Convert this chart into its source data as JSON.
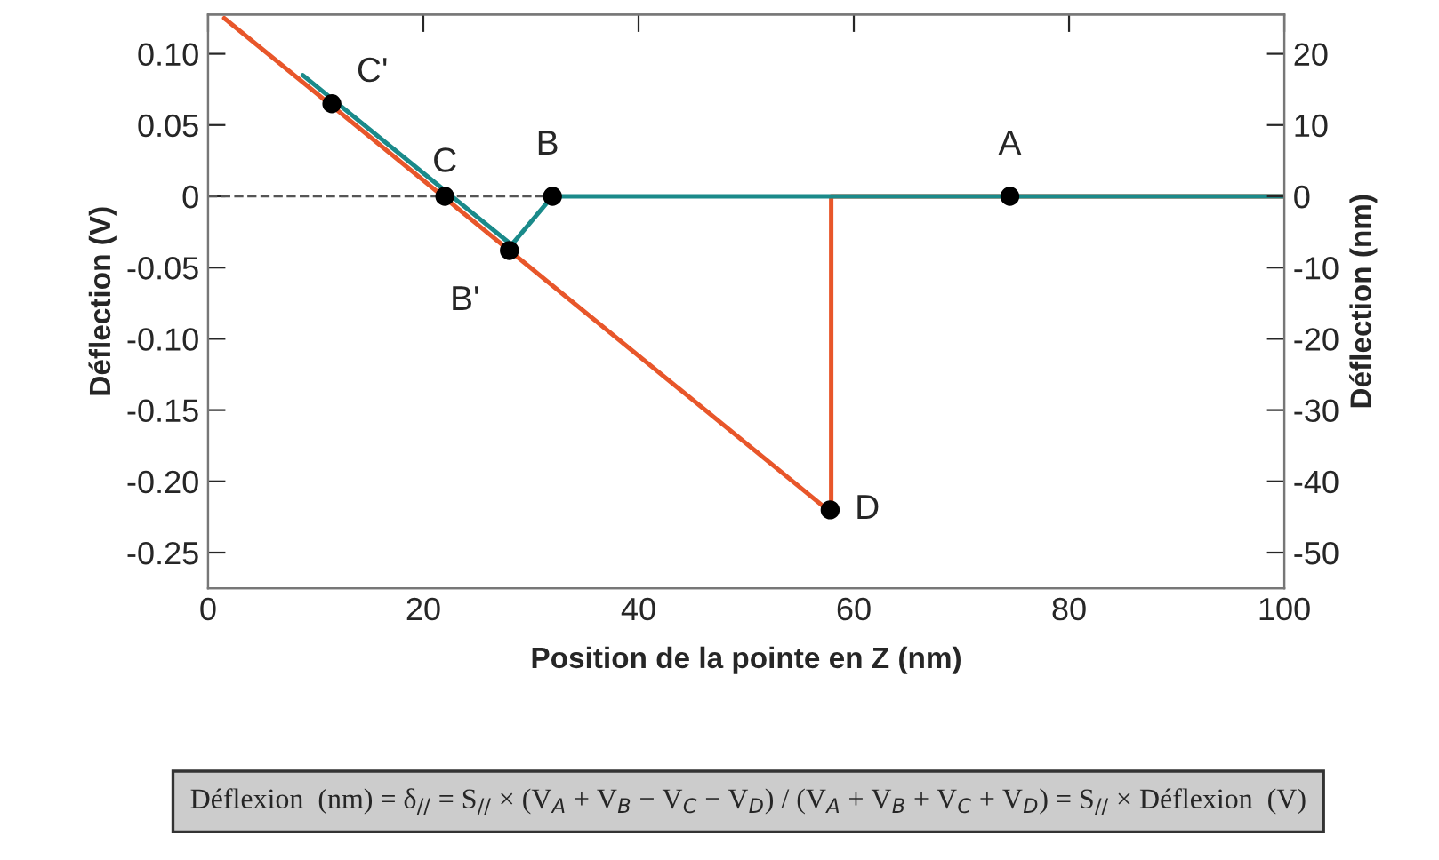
{
  "chart_data": {
    "type": "line",
    "xlabel": "Position de la pointe en Z (nm)",
    "ylabel": "Déflection (V)",
    "y2label": "Déflection (nm)",
    "xlim": [
      0,
      100
    ],
    "xticks": [
      0,
      20,
      40,
      60,
      80,
      100
    ],
    "ylim": [
      -0.275,
      0.1275
    ],
    "yticks": [
      {
        "value": 0.1,
        "label": "0.10"
      },
      0.05,
      0,
      -0.05,
      {
        "value": -0.1,
        "label": "-0.10"
      },
      -0.15,
      {
        "value": -0.2,
        "label": "-0.20"
      },
      -0.25
    ],
    "y2lim": [
      -55,
      25.5
    ],
    "y2ticks": [
      20,
      10,
      0,
      -10,
      -20,
      -30,
      -40,
      -50
    ],
    "grid": false,
    "legend": false,
    "series": [
      {
        "color": "#e8562a",
        "x": [
          100,
          57.9,
          57.9,
          1.5
        ],
        "values": [
          0,
          0,
          -0.222,
          0.125
        ]
      },
      {
        "color": "#1a8a8a",
        "x": [
          100,
          32,
          28.2,
          8.8
        ],
        "values": [
          0,
          0,
          -0.034,
          0.085
        ]
      },
      {
        "type": "scatter",
        "color": "#000000",
        "marker": "circle",
        "x": [
          74.5,
          32,
          28,
          22,
          11.5,
          57.8
        ],
        "values": [
          0,
          0,
          -0.038,
          0,
          0.065,
          -0.22
        ]
      }
    ],
    "ref_lines": [
      {
        "axis": "y",
        "value": 0,
        "color": "#555555",
        "line_style": "dashed"
      }
    ],
    "annotations": [
      {
        "text": "A",
        "x": 74.5,
        "y": 0
      },
      {
        "text": "B",
        "x": 32,
        "y": 0
      },
      {
        "text": "B'",
        "x": 28,
        "y": -0.038
      },
      {
        "text": "C",
        "x": 22,
        "y": 0
      },
      {
        "text": "C'",
        "x": 11.5,
        "y": 0.065
      },
      {
        "text": "D",
        "x": 57.8,
        "y": -0.22
      },
      "Déflexion  (nm) = δ$_{//}$ = S$_{//}$ × (V$_{A}$ + V$_{B}$ − V$_{C}$ − V$_{D}$) / (V$_{A}$ + V$_{B}$ + V$_{C}$ + V$_{D}$) = S$_{//}$ × Déflexion  (V)"
    ]
  }
}
